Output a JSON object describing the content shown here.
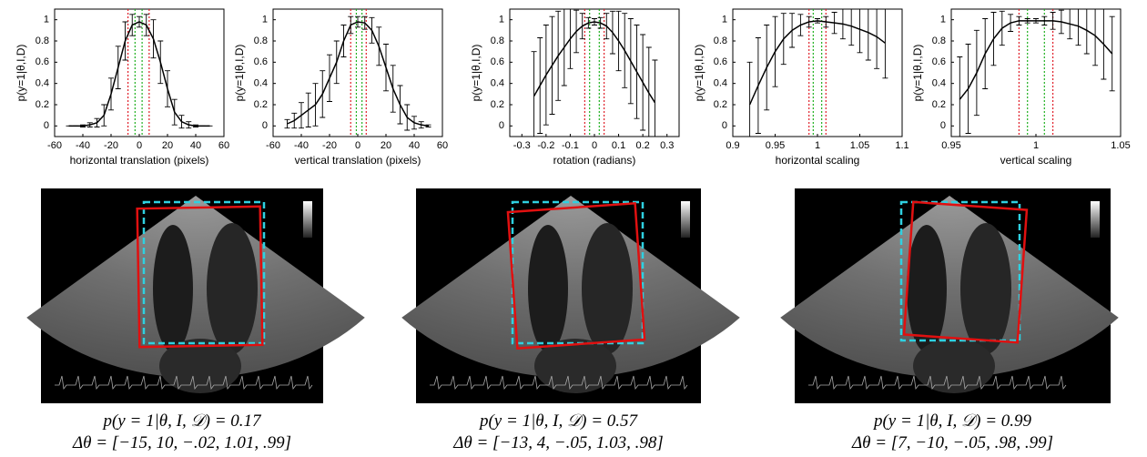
{
  "chart_data": [
    {
      "type": "line",
      "xlabel": "horizontal translation (pixels)",
      "ylabel": "p(y=1|θ,I,D)",
      "x": [
        -50,
        -45,
        -40,
        -35,
        -30,
        -25,
        -20,
        -15,
        -10,
        -5,
        0,
        5,
        10,
        15,
        20,
        25,
        30,
        35,
        40,
        45,
        50
      ],
      "series": [
        {
          "color": "#000000",
          "values": [
            0,
            0,
            0,
            0.01,
            0.03,
            0.1,
            0.3,
            0.55,
            0.8,
            0.95,
            0.98,
            0.95,
            0.82,
            0.6,
            0.35,
            0.13,
            0.04,
            0.01,
            0,
            0,
            0
          ],
          "errors": [
            0,
            0,
            0.01,
            0.02,
            0.04,
            0.1,
            0.15,
            0.2,
            0.18,
            0.1,
            0.05,
            0.1,
            0.18,
            0.2,
            0.17,
            0.12,
            0.06,
            0.03,
            0.01,
            0,
            0
          ]
        }
      ],
      "reference_lines": [
        {
          "x": -8,
          "color": "#e0202a"
        },
        {
          "x": 7,
          "color": "#e0202a"
        },
        {
          "x": -3,
          "color": "#20b020"
        },
        {
          "x": 2,
          "color": "#20b020"
        }
      ],
      "xlim": [
        -60,
        60
      ],
      "xticks": [
        -60,
        -40,
        -20,
        0,
        20,
        40,
        60
      ],
      "ylim": [
        -0.1,
        1.1
      ],
      "yticks": [
        0,
        0.2,
        0.4,
        0.6,
        0.8,
        1
      ]
    },
    {
      "type": "line",
      "xlabel": "vertical translation (pixels)",
      "ylabel": "p(y=1|θ,I,D)",
      "x": [
        -50,
        -45,
        -40,
        -35,
        -30,
        -25,
        -20,
        -15,
        -10,
        -5,
        0,
        5,
        10,
        15,
        20,
        25,
        30,
        35,
        40,
        45,
        50
      ],
      "series": [
        {
          "color": "#000000",
          "values": [
            0.02,
            0.05,
            0.1,
            0.15,
            0.2,
            0.3,
            0.45,
            0.6,
            0.8,
            0.95,
            0.98,
            0.97,
            0.9,
            0.75,
            0.55,
            0.35,
            0.2,
            0.08,
            0.03,
            0.01,
            0
          ],
          "errors": [
            0.04,
            0.07,
            0.12,
            0.16,
            0.2,
            0.22,
            0.22,
            0.2,
            0.15,
            0.08,
            0.05,
            0.06,
            0.12,
            0.18,
            0.22,
            0.22,
            0.18,
            0.12,
            0.06,
            0.03,
            0.01
          ]
        }
      ],
      "reference_lines": [
        {
          "x": -5,
          "color": "#e0202a"
        },
        {
          "x": 6,
          "color": "#e0202a"
        },
        {
          "x": -1,
          "color": "#20b020"
        },
        {
          "x": 3,
          "color": "#20b020"
        }
      ],
      "xlim": [
        -60,
        60
      ],
      "xticks": [
        -60,
        -40,
        -20,
        0,
        20,
        40,
        60
      ],
      "ylim": [
        -0.1,
        1.1
      ],
      "yticks": [
        0,
        0.2,
        0.4,
        0.6,
        0.8,
        1
      ]
    },
    {
      "type": "line",
      "xlabel": "rotation (radians)",
      "ylabel": "p(y=1|θ,I,D)",
      "x": [
        -0.25,
        -0.225,
        -0.2,
        -0.175,
        -0.15,
        -0.125,
        -0.1,
        -0.075,
        -0.05,
        -0.025,
        0,
        0.025,
        0.05,
        0.075,
        0.1,
        0.125,
        0.15,
        0.175,
        0.2,
        0.225,
        0.25
      ],
      "series": [
        {
          "color": "#000000",
          "values": [
            0.28,
            0.38,
            0.48,
            0.57,
            0.66,
            0.74,
            0.82,
            0.89,
            0.94,
            0.97,
            0.98,
            0.97,
            0.94,
            0.88,
            0.8,
            0.71,
            0.61,
            0.51,
            0.41,
            0.31,
            0.22
          ],
          "errors": [
            0.42,
            0.45,
            0.47,
            0.46,
            0.42,
            0.36,
            0.28,
            0.2,
            0.12,
            0.05,
            0.03,
            0.05,
            0.12,
            0.2,
            0.28,
            0.35,
            0.4,
            0.44,
            0.45,
            0.43,
            0.4
          ]
        }
      ],
      "reference_lines": [
        {
          "x": -0.04,
          "color": "#e0202a"
        },
        {
          "x": 0.04,
          "color": "#e0202a"
        },
        {
          "x": -0.02,
          "color": "#20b020"
        },
        {
          "x": 0.02,
          "color": "#20b020"
        }
      ],
      "xlim": [
        -0.35,
        0.35
      ],
      "xticks": [
        -0.3,
        -0.2,
        -0.1,
        0,
        0.1,
        0.2,
        0.3
      ],
      "ylim": [
        -0.1,
        1.1
      ],
      "yticks": [
        0,
        0.2,
        0.4,
        0.6,
        0.8,
        1
      ]
    },
    {
      "type": "line",
      "xlabel": "horizontal scaling",
      "ylabel": "p(y=1|θ,I,D)",
      "x": [
        0.92,
        0.93,
        0.94,
        0.95,
        0.96,
        0.97,
        0.98,
        0.99,
        1,
        1.01,
        1.02,
        1.03,
        1.04,
        1.05,
        1.06,
        1.07,
        1.08
      ],
      "series": [
        {
          "color": "#000000",
          "values": [
            0.2,
            0.38,
            0.55,
            0.7,
            0.82,
            0.9,
            0.95,
            0.98,
            0.99,
            0.98,
            0.97,
            0.96,
            0.94,
            0.91,
            0.88,
            0.84,
            0.78
          ],
          "errors": [
            0.4,
            0.45,
            0.4,
            0.33,
            0.24,
            0.16,
            0.1,
            0.05,
            0.02,
            0.05,
            0.1,
            0.14,
            0.18,
            0.22,
            0.26,
            0.3,
            0.33
          ]
        }
      ],
      "reference_lines": [
        {
          "x": 0.99,
          "color": "#e0202a"
        },
        {
          "x": 1.01,
          "color": "#e0202a"
        },
        {
          "x": 0.995,
          "color": "#20b020"
        },
        {
          "x": 1.005,
          "color": "#20b020"
        }
      ],
      "xlim": [
        0.9,
        1.1
      ],
      "xticks": [
        0.9,
        0.95,
        1,
        1.05,
        1.1
      ],
      "ylim": [
        -0.1,
        1.1
      ],
      "yticks": [
        0,
        0.2,
        0.4,
        0.6,
        0.8,
        1
      ]
    },
    {
      "type": "line",
      "xlabel": "vertical scaling",
      "ylabel": "p(y=1|θ,I,D)",
      "x": [
        0.955,
        0.96,
        0.965,
        0.97,
        0.975,
        0.98,
        0.985,
        0.99,
        0.995,
        1,
        1.005,
        1.01,
        1.015,
        1.02,
        1.025,
        1.03,
        1.035,
        1.04,
        1.045
      ],
      "series": [
        {
          "color": "#000000",
          "values": [
            0.25,
            0.35,
            0.5,
            0.68,
            0.82,
            0.92,
            0.97,
            0.99,
            0.99,
            0.99,
            0.99,
            0.99,
            0.98,
            0.96,
            0.94,
            0.9,
            0.85,
            0.77,
            0.68
          ],
          "errors": [
            0.4,
            0.42,
            0.4,
            0.33,
            0.25,
            0.16,
            0.08,
            0.04,
            0.02,
            0.02,
            0.04,
            0.08,
            0.11,
            0.14,
            0.18,
            0.22,
            0.28,
            0.33,
            0.35
          ]
        }
      ],
      "reference_lines": [
        {
          "x": 0.99,
          "color": "#e0202a"
        },
        {
          "x": 1.01,
          "color": "#e0202a"
        },
        {
          "x": 0.995,
          "color": "#20b020"
        },
        {
          "x": 1.005,
          "color": "#20b020"
        }
      ],
      "xlim": [
        0.95,
        1.05
      ],
      "xticks": [
        0.95,
        1,
        1.05
      ],
      "ylim": [
        -0.1,
        1.1
      ],
      "yticks": [
        0,
        0.2,
        0.4,
        0.6,
        0.8,
        1
      ]
    }
  ],
  "panels": [
    {
      "score": "p(y = 1|θ, I, 𝒟) = 0.17",
      "offset": "Δθ = [−15, 10, −.02, 1.01, .99]"
    },
    {
      "score": "p(y = 1|θ, I, 𝒟) = 0.57",
      "offset": "Δθ = [−13, 4, −.05, 1.03, .98]"
    },
    {
      "score": "p(y = 1|θ, I, 𝒟) = 0.99",
      "offset": "Δθ = [7, −10, −.05, .98, .99]"
    }
  ]
}
